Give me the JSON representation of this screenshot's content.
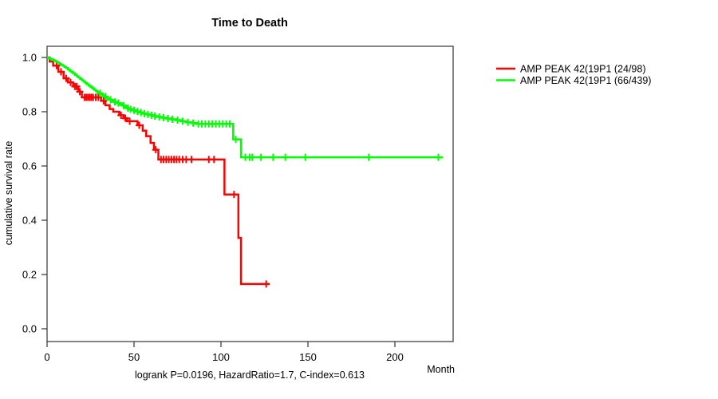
{
  "chart_data": {
    "type": "line",
    "variant": "kaplan-meier-step",
    "title": "Time to Death",
    "xlabel": "Month",
    "ylabel": "cumulative survival rate",
    "annotation": "logrank P=0.0196, HazardRatio=1.7, C-index=0.613",
    "xlim": [
      0,
      233
    ],
    "ylim": [
      0.0,
      1.0
    ],
    "x_ticks": [
      0,
      50,
      100,
      150,
      200
    ],
    "y_ticks": [
      "0.0",
      "0.2",
      "0.4",
      "0.6",
      "0.8",
      "1.0"
    ],
    "grid": false,
    "legend_position": "right-outside",
    "box": true,
    "axis_color": "#333333",
    "series": [
      {
        "name": "AMP PEAK 42(19P1 (24/98)",
        "color": "#ff0000",
        "end_month": 128,
        "steps": [
          [
            0,
            1.0
          ],
          [
            1.5,
            0.985
          ],
          [
            3.5,
            0.97
          ],
          [
            6.5,
            0.947
          ],
          [
            9.5,
            0.923
          ],
          [
            12,
            0.908
          ],
          [
            15,
            0.893
          ],
          [
            18,
            0.874
          ],
          [
            20,
            0.853
          ],
          [
            31,
            0.84
          ],
          [
            33.5,
            0.824
          ],
          [
            36,
            0.81
          ],
          [
            38,
            0.8
          ],
          [
            41.5,
            0.787
          ],
          [
            44,
            0.776
          ],
          [
            46,
            0.765
          ],
          [
            52,
            0.75
          ],
          [
            55,
            0.73
          ],
          [
            57,
            0.71
          ],
          [
            59.5,
            0.685
          ],
          [
            61.5,
            0.66
          ],
          [
            64,
            0.624
          ],
          [
            102,
            0.495
          ],
          [
            110,
            0.335
          ],
          [
            111.5,
            0.165
          ]
        ],
        "censor_marks": [
          [
            5.5,
            0.97
          ],
          [
            8,
            0.947
          ],
          [
            11,
            0.923
          ],
          [
            13.5,
            0.908
          ],
          [
            16,
            0.893
          ],
          [
            17,
            0.893
          ],
          [
            18.8,
            0.874
          ],
          [
            21.5,
            0.853
          ],
          [
            22.5,
            0.853
          ],
          [
            23.5,
            0.853
          ],
          [
            24.5,
            0.853
          ],
          [
            25.5,
            0.853
          ],
          [
            26.5,
            0.853
          ],
          [
            28,
            0.853
          ],
          [
            29.5,
            0.853
          ],
          [
            32.5,
            0.84
          ],
          [
            42.5,
            0.787
          ],
          [
            45,
            0.776
          ],
          [
            47.5,
            0.765
          ],
          [
            53,
            0.75
          ],
          [
            62.5,
            0.66
          ],
          [
            65.5,
            0.624
          ],
          [
            67,
            0.624
          ],
          [
            68.5,
            0.624
          ],
          [
            70,
            0.624
          ],
          [
            71.5,
            0.624
          ],
          [
            73,
            0.624
          ],
          [
            74.5,
            0.624
          ],
          [
            76,
            0.624
          ],
          [
            78,
            0.624
          ],
          [
            80,
            0.624
          ],
          [
            83,
            0.624
          ],
          [
            93,
            0.624
          ],
          [
            96,
            0.624
          ],
          [
            107.5,
            0.495
          ],
          [
            126,
            0.165
          ]
        ]
      },
      {
        "name": "AMP PEAK 42(19P1 (66/439)",
        "color": "#00ff00",
        "end_month": 227.5,
        "steps": [
          [
            0,
            1.0
          ],
          [
            1,
            0.997
          ],
          [
            2,
            0.994
          ],
          [
            3,
            0.991
          ],
          [
            4,
            0.988
          ],
          [
            5,
            0.985
          ],
          [
            6,
            0.981
          ],
          [
            7,
            0.977
          ],
          [
            8,
            0.973
          ],
          [
            9,
            0.969
          ],
          [
            10,
            0.965
          ],
          [
            11,
            0.961
          ],
          [
            12,
            0.956
          ],
          [
            13,
            0.951
          ],
          [
            14,
            0.946
          ],
          [
            15,
            0.941
          ],
          [
            16,
            0.936
          ],
          [
            17,
            0.931
          ],
          [
            18,
            0.926
          ],
          [
            19,
            0.921
          ],
          [
            20,
            0.916
          ],
          [
            21,
            0.911
          ],
          [
            22,
            0.906
          ],
          [
            23,
            0.901
          ],
          [
            24,
            0.896
          ],
          [
            25,
            0.891
          ],
          [
            26,
            0.886
          ],
          [
            27,
            0.881
          ],
          [
            28,
            0.876
          ],
          [
            29,
            0.872
          ],
          [
            30,
            0.868
          ],
          [
            31,
            0.864
          ],
          [
            32,
            0.86
          ],
          [
            33,
            0.856
          ],
          [
            34,
            0.852
          ],
          [
            35,
            0.848
          ],
          [
            36,
            0.844
          ],
          [
            37,
            0.84
          ],
          [
            38.5,
            0.836
          ],
          [
            40,
            0.832
          ],
          [
            41.5,
            0.828
          ],
          [
            43,
            0.823
          ],
          [
            44.5,
            0.818
          ],
          [
            46,
            0.813
          ],
          [
            47.5,
            0.809
          ],
          [
            49,
            0.805
          ],
          [
            51,
            0.801
          ],
          [
            53,
            0.797
          ],
          [
            55,
            0.793
          ],
          [
            57,
            0.79
          ],
          [
            59,
            0.787
          ],
          [
            61,
            0.784
          ],
          [
            63.5,
            0.781
          ],
          [
            66,
            0.778
          ],
          [
            68.5,
            0.775
          ],
          [
            71,
            0.772
          ],
          [
            74,
            0.769
          ],
          [
            77,
            0.765
          ],
          [
            80,
            0.761
          ],
          [
            83,
            0.758
          ],
          [
            86,
            0.755
          ],
          [
            107,
            0.698
          ],
          [
            111.5,
            0.632
          ]
        ],
        "censor_marks": [
          [
            30.5,
            0.868
          ],
          [
            33.5,
            0.856
          ],
          [
            36.5,
            0.844
          ],
          [
            39,
            0.836
          ],
          [
            41,
            0.832
          ],
          [
            44,
            0.823
          ],
          [
            46.5,
            0.813
          ],
          [
            48,
            0.809
          ],
          [
            50,
            0.805
          ],
          [
            52,
            0.801
          ],
          [
            54,
            0.797
          ],
          [
            56,
            0.793
          ],
          [
            58,
            0.79
          ],
          [
            60,
            0.787
          ],
          [
            62,
            0.784
          ],
          [
            64.5,
            0.781
          ],
          [
            67,
            0.778
          ],
          [
            69.5,
            0.775
          ],
          [
            72,
            0.772
          ],
          [
            75,
            0.769
          ],
          [
            78,
            0.765
          ],
          [
            81,
            0.761
          ],
          [
            84,
            0.758
          ],
          [
            87,
            0.755
          ],
          [
            89,
            0.755
          ],
          [
            91,
            0.755
          ],
          [
            93,
            0.755
          ],
          [
            95,
            0.755
          ],
          [
            97,
            0.755
          ],
          [
            99,
            0.755
          ],
          [
            101,
            0.755
          ],
          [
            103,
            0.755
          ],
          [
            105,
            0.755
          ],
          [
            108.5,
            0.698
          ],
          [
            114,
            0.632
          ],
          [
            116.5,
            0.632
          ],
          [
            118,
            0.632
          ],
          [
            123,
            0.632
          ],
          [
            130,
            0.632
          ],
          [
            137,
            0.632
          ],
          [
            148.5,
            0.632
          ],
          [
            185,
            0.632
          ],
          [
            225,
            0.632
          ]
        ]
      }
    ]
  }
}
